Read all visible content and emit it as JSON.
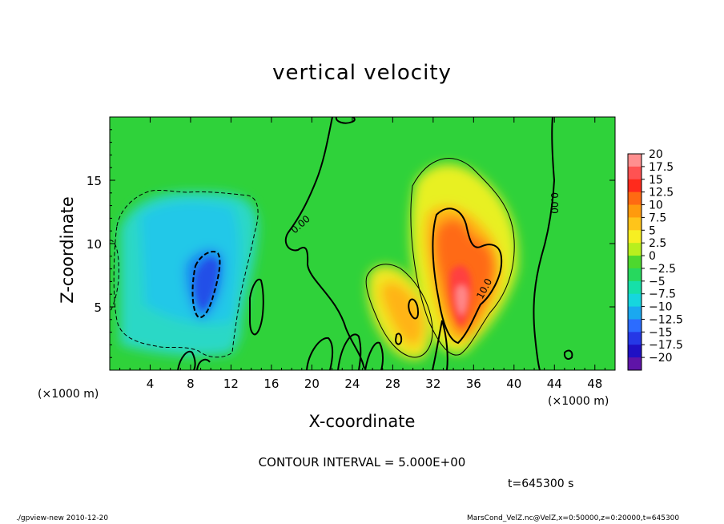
{
  "title": "vertical velocity",
  "xlabel": "X-coordinate",
  "ylabel": "Z-coordinate",
  "x_unit_left": "(×1000 m)",
  "x_unit_right": "(×1000 m)",
  "contour_interval": "CONTOUR INTERVAL = 5.000E+00",
  "time_label": "t=645300 s",
  "footer_left": "./gpview-new   2010-12-20",
  "footer_right": "MarsCond_VelZ.nc@VelZ,x=0:50000,z=0:20000,t=645300",
  "colors": {
    "background_field": "#2fd23a",
    "contour_line": "#000000"
  },
  "chart_data": {
    "type": "heatmap",
    "title": "vertical velocity",
    "xlabel": "X-coordinate",
    "ylabel": "Z-coordinate",
    "xlim": [
      0,
      50
    ],
    "ylim": [
      0,
      20
    ],
    "x_ticks": [
      4,
      8,
      12,
      16,
      20,
      24,
      28,
      32,
      36,
      40,
      44,
      48
    ],
    "y_ticks": [
      5,
      10,
      15
    ],
    "contour_labels": [
      {
        "text": "0.00",
        "x": 19,
        "z": 11.8
      },
      {
        "text": "0.00",
        "x": 44.7,
        "z": 13.5
      },
      {
        "text": "10.0",
        "x": 37.6,
        "z": 6.6
      }
    ],
    "features": [
      {
        "kind": "max",
        "x": 35,
        "z": 6,
        "value": 17
      },
      {
        "kind": "max",
        "x": 29.5,
        "z": 5,
        "value": 9
      },
      {
        "kind": "min",
        "x": 9.5,
        "z": 7.5,
        "value": -14
      }
    ],
    "colorbar": {
      "labels": [
        "20",
        "17.5",
        "15",
        "12.5",
        "10",
        "7.5",
        "5",
        "2.5",
        "0",
        "-2.5",
        "-5",
        "-7.5",
        "-10",
        "-12.5",
        "-15",
        "-17.5",
        "-20"
      ],
      "colors": [
        "#ff8f8f",
        "#ff5252",
        "#ff2a1c",
        "#ff6a12",
        "#ff9a0d",
        "#ffc41a",
        "#f7ef22",
        "#b8ef1e",
        "#4dd82e",
        "#27d85e",
        "#16e0a8",
        "#16d6de",
        "#1aa8f0",
        "#2c6cff",
        "#2538e6",
        "#1f10c4",
        "#5f14a8"
      ]
    }
  }
}
